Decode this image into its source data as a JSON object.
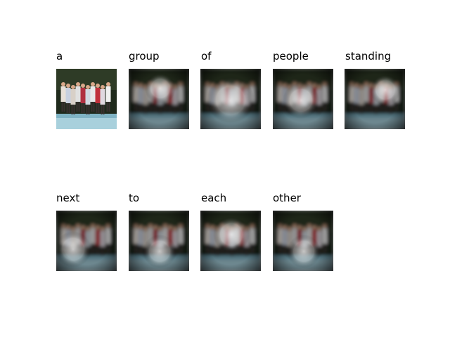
{
  "caption_words": [
    "a",
    "group",
    "of",
    "people",
    "standing",
    "next",
    "to",
    "each",
    "other"
  ],
  "panels": [
    {
      "word": "a",
      "kind": "original-photo",
      "attention": null
    },
    {
      "word": "group",
      "kind": "attention-map",
      "attention": "top-center"
    },
    {
      "word": "of",
      "kind": "attention-map",
      "attention": "diffuse"
    },
    {
      "word": "people",
      "kind": "attention-map",
      "attention": "center"
    },
    {
      "word": "standing",
      "kind": "attention-map",
      "attention": "top-right"
    },
    {
      "word": "next",
      "kind": "attention-map",
      "attention": "lower-left"
    },
    {
      "word": "to",
      "kind": "attention-map",
      "attention": "lower-center"
    },
    {
      "word": "each",
      "kind": "attention-map",
      "attention": "upper-center"
    },
    {
      "word": "other",
      "kind": "attention-map",
      "attention": "lower-center"
    }
  ],
  "colors": {
    "background": "#ffffff",
    "text": "#000000",
    "photo_dark": "#1f2a1c",
    "photo_red": "#c0303a",
    "photo_ground": "#7fb3c4"
  }
}
